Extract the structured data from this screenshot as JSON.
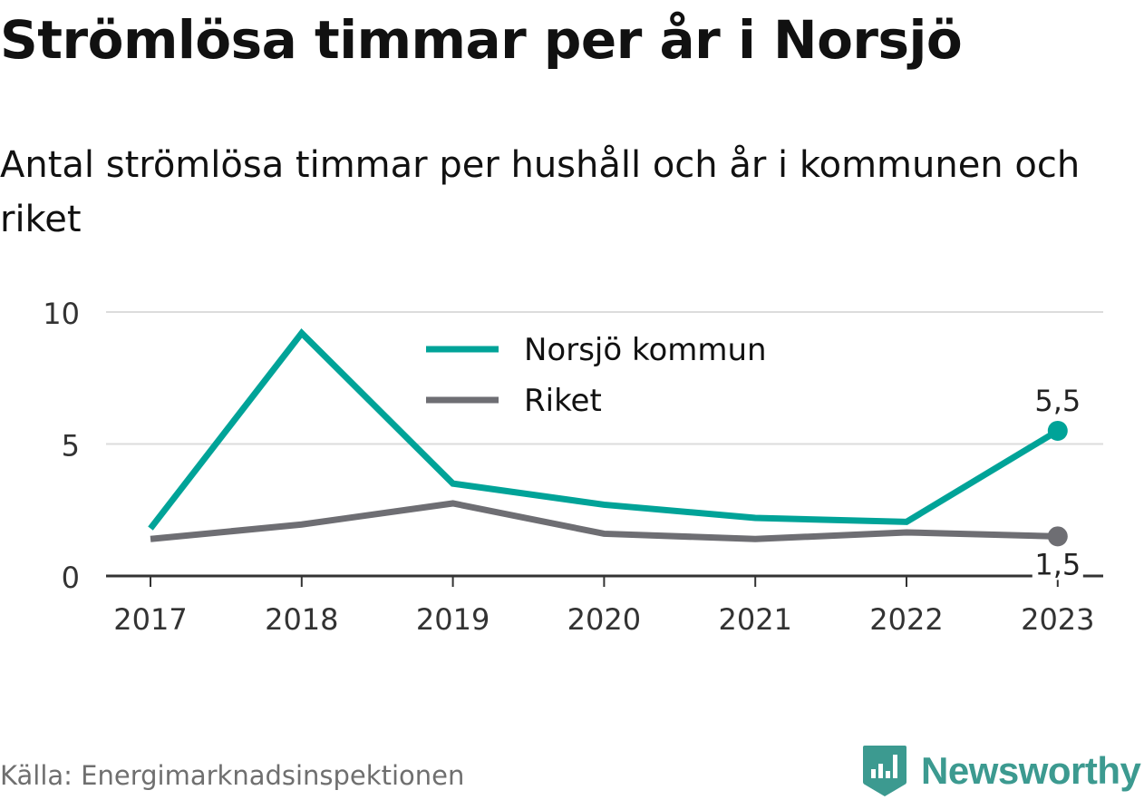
{
  "title": "Strömlösa timmar per år i Norsjö",
  "subtitle": "Antal strömlösa timmar per hushåll och år i kommunen och riket",
  "source": "Källa: Energimarknadsinspektionen",
  "brand": {
    "name": "Newsworthy",
    "icon": "newsworthy-logo-icon",
    "color": "#3c9a90"
  },
  "chart_data": {
    "type": "line",
    "categories": [
      "2017",
      "2018",
      "2019",
      "2020",
      "2021",
      "2022",
      "2023"
    ],
    "series": [
      {
        "name": "Norsjö kommun",
        "color": "#00a398",
        "values": [
          1.8,
          9.2,
          3.5,
          2.7,
          2.2,
          2.05,
          5.5
        ],
        "end_label": "5,5"
      },
      {
        "name": "Riket",
        "color": "#6e6e73",
        "values": [
          1.4,
          1.95,
          2.75,
          1.6,
          1.4,
          1.65,
          1.5
        ],
        "end_label": "1,5"
      }
    ],
    "yticks": [
      0,
      5,
      10
    ],
    "ylim": [
      0,
      10
    ],
    "grid": true,
    "legend_position": "top-center"
  }
}
